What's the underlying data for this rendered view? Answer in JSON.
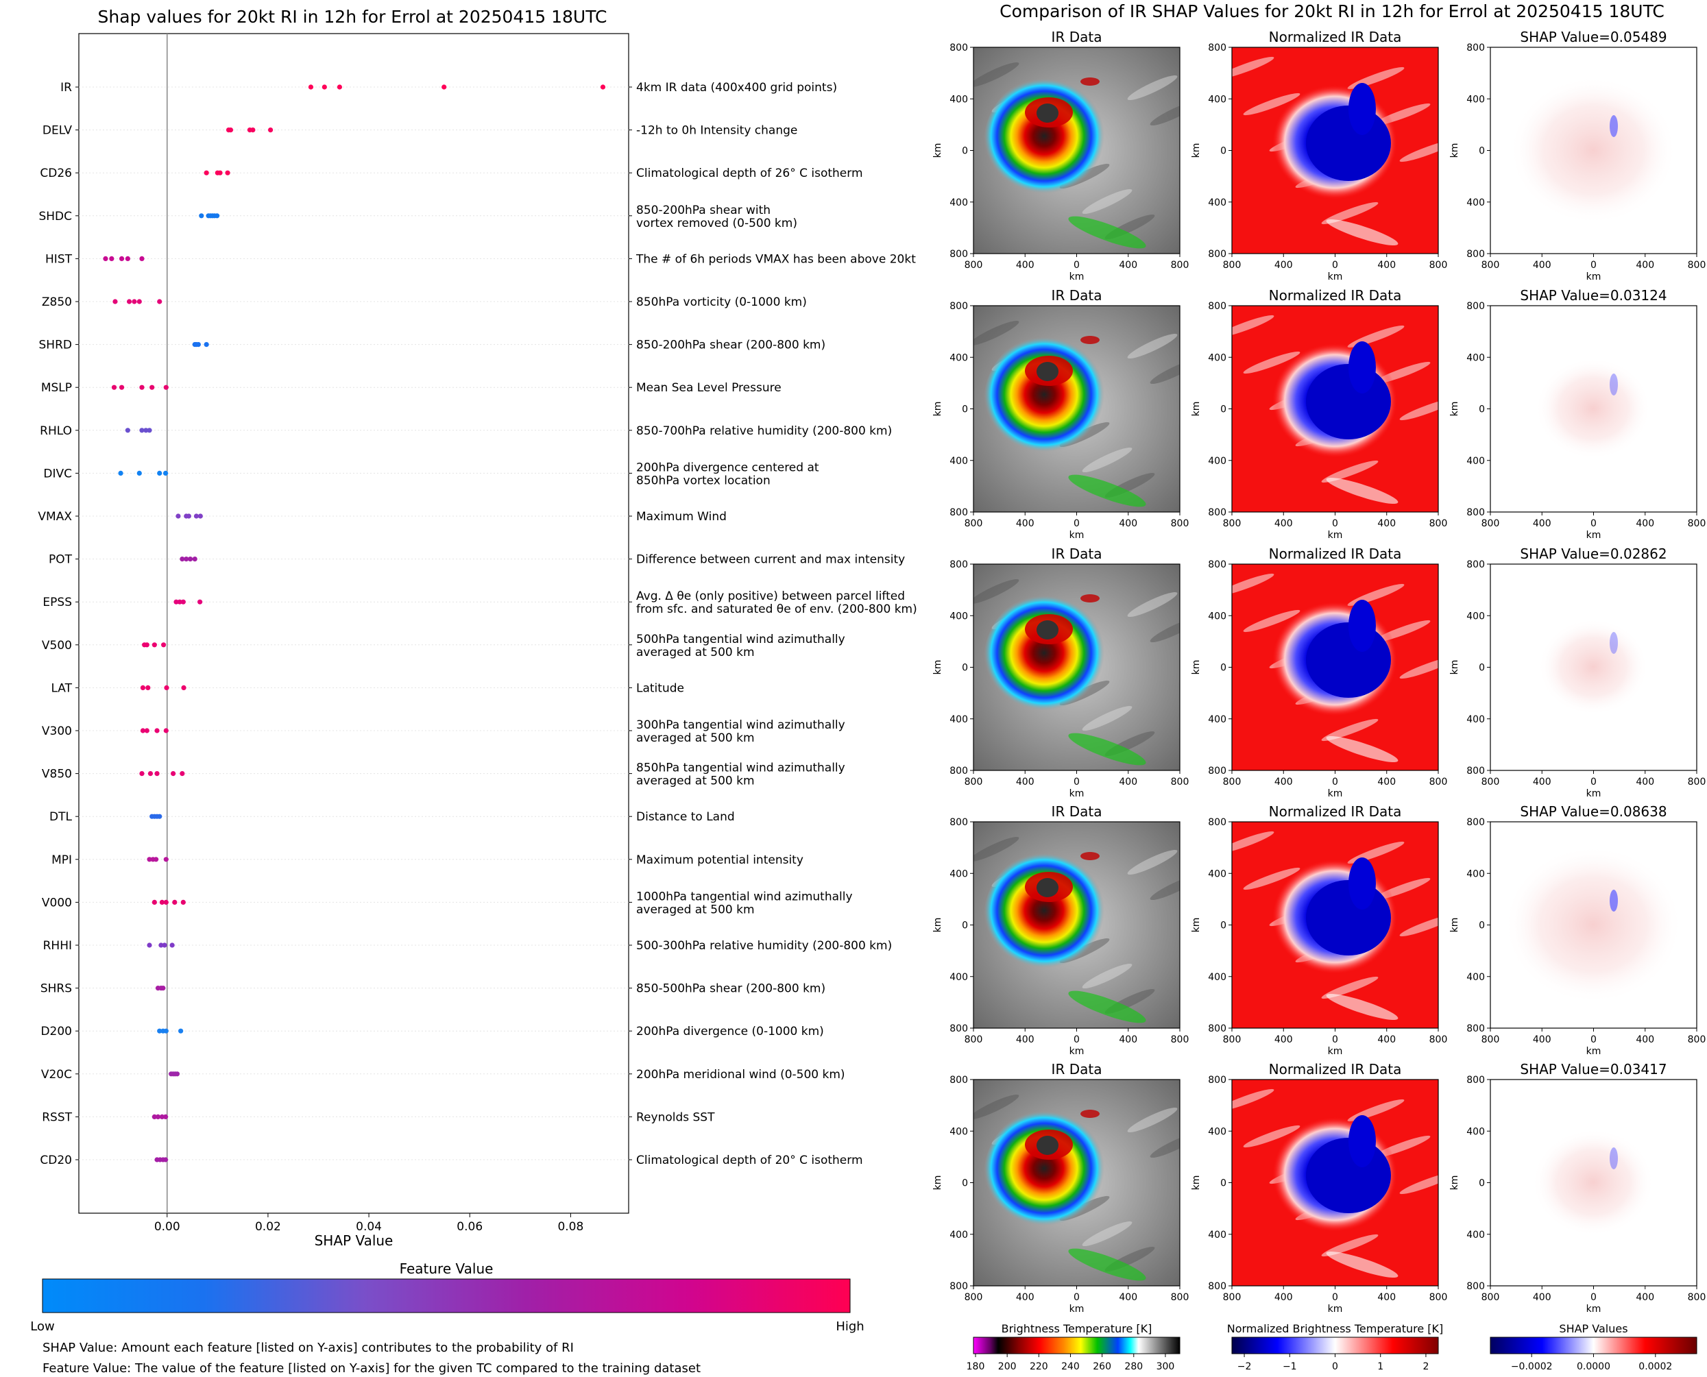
{
  "left_title": "Shap values for 20kt RI in 12h for Errol at 20250415 18UTC",
  "right_title": "Comparison of IR SHAP Values for 20kt RI in 12h for Errol at 20250415 18UTC",
  "footer": {
    "line1": "SHAP Value: Amount each feature [listed on Y-axis] contributes to the probability of RI",
    "line2": "Feature Value: The value of the feature [listed on Y-axis] for the given TC compared to the training dataset"
  },
  "colorbar": {
    "title": "Feature Value",
    "low_label": "Low",
    "high_label": "High",
    "colors": [
      "#008bfa",
      "#1a72f0",
      "#7a4fc9",
      "#a020a8",
      "#d0058f",
      "#ff0052"
    ]
  },
  "panel_titles": {
    "ir": "IR Data",
    "norm": "Normalized IR Data"
  },
  "panel_axis": {
    "xlabel": "km",
    "ylabel": "km",
    "ticks": [
      "800",
      "400",
      "0",
      "400",
      "800"
    ]
  },
  "panel_rows": [
    {
      "shap_title": "SHAP Value=0.05489",
      "shap_value": 0.05489
    },
    {
      "shap_title": "SHAP Value=0.03124",
      "shap_value": 0.03124
    },
    {
      "shap_title": "SHAP Value=0.02862",
      "shap_value": 0.02862
    },
    {
      "shap_title": "SHAP Value=0.08638",
      "shap_value": 0.08638
    },
    {
      "shap_title": "SHAP Value=0.03417",
      "shap_value": 0.03417
    }
  ],
  "bottom_colorbars": [
    {
      "title": "Brightness Temperature [K]",
      "ticks": [
        "180",
        "200",
        "220",
        "240",
        "260",
        "280",
        "300"
      ]
    },
    {
      "title": "Normalized Brightness Temperature [K]",
      "ticks": [
        "−2",
        "−1",
        "0",
        "1",
        "2"
      ]
    },
    {
      "title": "SHAP Values",
      "ticks": [
        "−0.0002",
        "0.0000",
        "0.0002"
      ]
    }
  ],
  "chart_data": {
    "type": "scatter",
    "title": "Shap values for 20kt RI in 12h for Errol at 20250415 18UTC",
    "xlabel": "SHAP Value",
    "ylabel": "",
    "xlim": [
      -0.0175,
      0.0915
    ],
    "xticks": [
      "0.00",
      "0.02",
      "0.04",
      "0.06",
      "0.08"
    ],
    "xtick_values": [
      0,
      0.02,
      0.04,
      0.06,
      0.08
    ],
    "features": [
      {
        "name": "IR",
        "desc": [
          "4km IR data (400x400 grid points)"
        ],
        "color": "#ff0058",
        "values": [
          0.0285,
          0.0312,
          0.0342,
          0.0549,
          0.0864
        ]
      },
      {
        "name": "DELV",
        "desc": [
          "-12h to 0h Intensity change"
        ],
        "color": "#f8005f",
        "values": [
          0.0122,
          0.0126,
          0.0164,
          0.017,
          0.0205
        ]
      },
      {
        "name": "CD26",
        "desc": [
          "Climatological depth of 26° C isotherm"
        ],
        "color": "#fb005c",
        "values": [
          0.0078,
          0.01,
          0.0105,
          0.012
        ]
      },
      {
        "name": "SHDC",
        "desc": [
          "850-200hPa shear with",
          "vortex removed (0-500 km)"
        ],
        "color": "#1478ee",
        "values": [
          0.0068,
          0.0082,
          0.0086,
          0.009,
          0.0094,
          0.0099
        ]
      },
      {
        "name": "HIST",
        "desc": [
          "The # of 6h periods VMAX has been above 20kt"
        ],
        "color": "#c80b92",
        "values": [
          -0.0122,
          -0.011,
          -0.009,
          -0.0078,
          -0.005
        ]
      },
      {
        "name": "Z850",
        "desc": [
          "850hPa vorticity (0-1000 km)"
        ],
        "color": "#e40478",
        "values": [
          -0.0103,
          -0.0075,
          -0.0065,
          -0.0055,
          -0.0015
        ]
      },
      {
        "name": "SHRD",
        "desc": [
          "850-200hPa shear (200-800 km)"
        ],
        "color": "#1a72f0",
        "values": [
          0.0055,
          0.0058,
          0.0062,
          0.0078
        ]
      },
      {
        "name": "MSLP",
        "desc": [
          "Mean Sea Level Pressure"
        ],
        "color": "#e8046f",
        "values": [
          -0.0105,
          -0.009,
          -0.005,
          -0.003,
          -0.0002
        ]
      },
      {
        "name": "RHLO",
        "desc": [
          "850-700hPa relative humidity (200-800 km)"
        ],
        "color": "#6a50cf",
        "values": [
          -0.0078,
          -0.005,
          -0.0042,
          -0.0035
        ]
      },
      {
        "name": "DIVC",
        "desc": [
          "200hPa divergence centered at",
          "850hPa vortex location"
        ],
        "color": "#1282f2",
        "values": [
          -0.0092,
          -0.0055,
          -0.0015,
          -0.0003
        ]
      },
      {
        "name": "VMAX",
        "desc": [
          "Maximum Wind"
        ],
        "color": "#8040c6",
        "values": [
          0.0022,
          0.0038,
          0.0043,
          0.0058,
          0.0066
        ]
      },
      {
        "name": "POT",
        "desc": [
          "Difference between current and max intensity"
        ],
        "color": "#a220a6",
        "values": [
          0.003,
          0.0038,
          0.0046,
          0.0055
        ]
      },
      {
        "name": "EPSS",
        "desc": [
          "Avg. Δ θe (only positive) between parcel lifted",
          "from sfc. and saturated θe of env. (200-800 km)"
        ],
        "color": "#e6007b",
        "values": [
          0.0018,
          0.0025,
          0.0032,
          0.0065
        ]
      },
      {
        "name": "V500",
        "desc": [
          "500hPa tangential wind azimuthally",
          "averaged at 500 km"
        ],
        "color": "#ec0070",
        "values": [
          -0.0045,
          -0.004,
          -0.0025,
          -0.0007
        ]
      },
      {
        "name": "LAT",
        "desc": [
          "Latitude"
        ],
        "color": "#ee006d",
        "values": [
          -0.0048,
          -0.0038,
          -0.0001,
          0.0033
        ]
      },
      {
        "name": "V300",
        "desc": [
          "300hPa tangential wind azimuthally",
          "averaged at 500 km"
        ],
        "color": "#ea0072",
        "values": [
          -0.0048,
          -0.004,
          -0.002,
          -0.0002
        ]
      },
      {
        "name": "V850",
        "desc": [
          "850hPa tangential wind azimuthally",
          "averaged at 500 km"
        ],
        "color": "#e80074",
        "values": [
          -0.005,
          -0.0033,
          -0.002,
          0.0012,
          0.003
        ]
      },
      {
        "name": "DTL",
        "desc": [
          "Distance to Land"
        ],
        "color": "#2a6aea",
        "values": [
          -0.003,
          -0.0025,
          -0.002,
          -0.0015
        ]
      },
      {
        "name": "MPI",
        "desc": [
          "Maximum potential intensity"
        ],
        "color": "#b8179c",
        "values": [
          -0.0035,
          -0.0028,
          -0.0022,
          -0.0002
        ]
      },
      {
        "name": "V000",
        "desc": [
          "1000hPa tangential wind azimuthally",
          "averaged at 500 km"
        ],
        "color": "#e8006f",
        "values": [
          -0.0025,
          -0.001,
          -0.0002,
          0.0015,
          0.0032
        ]
      },
      {
        "name": "RHHI",
        "desc": [
          "500-300hPa relative humidity (200-800 km)"
        ],
        "color": "#7f3bc8",
        "values": [
          -0.0035,
          -0.0012,
          -0.0005,
          0.001
        ]
      },
      {
        "name": "SHRS",
        "desc": [
          "850-500hPa shear (200-800 km)"
        ],
        "color": "#a81ea4",
        "values": [
          -0.0018,
          -0.0012,
          -0.0008
        ]
      },
      {
        "name": "D200",
        "desc": [
          "200hPa divergence (0-1000 km)"
        ],
        "color": "#1a80f0",
        "values": [
          -0.0015,
          -0.0008,
          -0.0002,
          0.0027
        ]
      },
      {
        "name": "V20C",
        "desc": [
          "200hPa meridional wind (0-500 km)"
        ],
        "color": "#9e26aa",
        "values": [
          0.0008,
          0.0012,
          0.0016,
          0.002
        ]
      },
      {
        "name": "RSST",
        "desc": [
          "Reynolds SST"
        ],
        "color": "#ae1aa0",
        "values": [
          -0.0025,
          -0.0018,
          -0.001,
          -0.0003
        ]
      },
      {
        "name": "CD20",
        "desc": [
          "Climatological depth of 20° C isotherm"
        ],
        "color": "#a41ea6",
        "values": [
          -0.002,
          -0.0014,
          -0.0008,
          -0.0003
        ]
      }
    ]
  }
}
